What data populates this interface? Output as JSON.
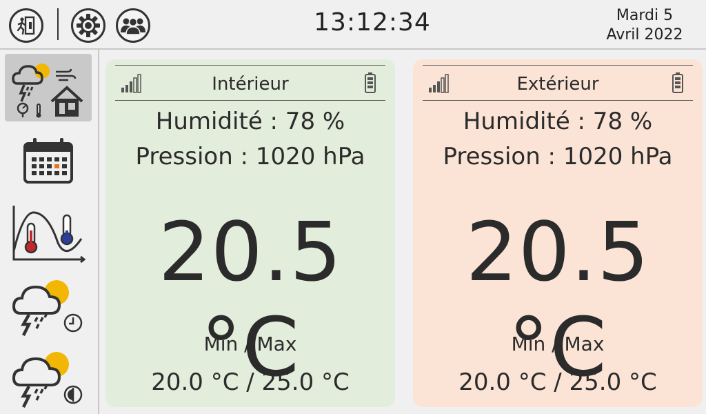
{
  "header": {
    "clock": "13:12:34",
    "date_line1": "Mardi 5",
    "date_line2": "Avril 2022",
    "icons": [
      "exit-icon",
      "gear-icon",
      "users-icon"
    ]
  },
  "sidebar": {
    "items": [
      {
        "icon": "weather-home-icon",
        "active": true
      },
      {
        "icon": "calendar-icon",
        "active": false
      },
      {
        "icon": "temperature-curve-icon",
        "active": false
      },
      {
        "icon": "storm-clock-icon",
        "active": false
      },
      {
        "icon": "storm-timer-icon",
        "active": false
      }
    ]
  },
  "interior": {
    "title": "Intérieur",
    "humidity": "Humidité : 78 %",
    "pressure": "Pression : 1020 hPa",
    "temperature": "20.5 °C",
    "minmax_label": "Min / Max",
    "minmax_value": "20.0 °C / 25.0 °C",
    "background": "#e2eddb"
  },
  "exterior": {
    "title": "Extérieur",
    "humidity": "Humidité : 78 %",
    "pressure": "Pression : 1020 hPa",
    "temperature": "20.5 °C",
    "minmax_label": "Min / Max",
    "minmax_value": "20.0 °C / 25.0 °C",
    "background": "#fbe4d6"
  },
  "colors": {
    "accent_sun": "#f2b705",
    "thermo_hot": "#c0282d",
    "thermo_cold": "#2c3e9c",
    "calendar_today": "#e8741c"
  }
}
